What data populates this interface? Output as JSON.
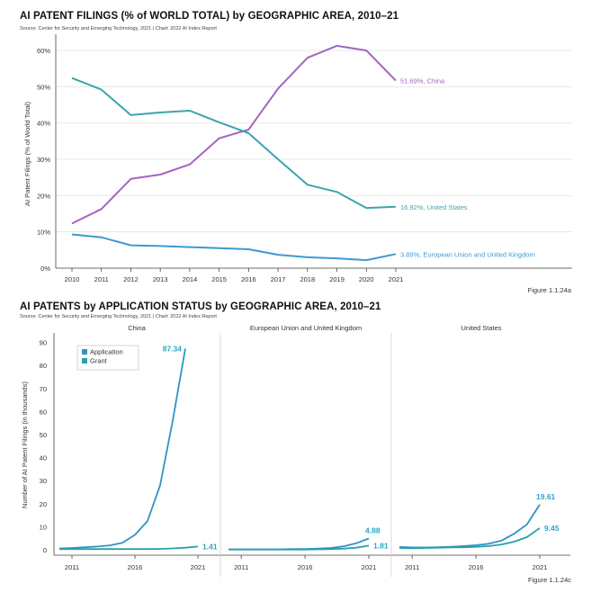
{
  "chart_data": [
    {
      "type": "line",
      "title": "AI PATENT FILINGS (% of WORLD TOTAL) by GEOGRAPHIC AREA, 2010–21",
      "source": "Source: Center for Security and Emerging Technology, 2021 | Chart: 2022 AI Index Report",
      "figure_label": "Figure 1.1.24a",
      "ylabel": "AI Patent Filings (% of World Total)",
      "xlabel": "",
      "x": [
        2010,
        2011,
        2012,
        2013,
        2014,
        2015,
        2016,
        2017,
        2018,
        2019,
        2020,
        2021
      ],
      "xtick_labels": [
        "2010",
        "2011",
        "2012",
        "2013",
        "2014",
        "2015",
        "2016",
        "2017",
        "2018",
        "2019",
        "2020",
        "2021"
      ],
      "ylim": [
        0,
        63
      ],
      "yticks": [
        0,
        10,
        20,
        30,
        40,
        50,
        60
      ],
      "ytick_labels": [
        "0%",
        "10%",
        "20%",
        "30%",
        "40%",
        "50%",
        "60%"
      ],
      "grid": "horizontal",
      "series": [
        {
          "name": "China",
          "color": "#a464c1",
          "end_label": "51.69%, China",
          "values": [
            12.3,
            16.3,
            24.6,
            25.8,
            28.6,
            35.8,
            38.2,
            49.5,
            58.0,
            61.3,
            60.0,
            51.69
          ]
        },
        {
          "name": "United States",
          "color": "#3ba5ad",
          "end_label": "16.92%, United States",
          "values": [
            52.4,
            49.2,
            42.2,
            42.9,
            43.4,
            40.2,
            37.2,
            30.0,
            23.0,
            21.0,
            16.6,
            16.92
          ]
        },
        {
          "name": "European Union and United Kingdom",
          "color": "#3d9ad1",
          "end_label": "3.89%, European Union and United Kingdom",
          "values": [
            9.3,
            8.5,
            6.3,
            6.1,
            5.8,
            5.5,
            5.2,
            3.7,
            3.0,
            2.7,
            2.2,
            3.89
          ]
        }
      ]
    },
    {
      "type": "line",
      "title": "AI PATENTS by APPLICATION STATUS by GEOGRAPHIC AREA, 2010–21",
      "source": "Source: Center for Security and Emerging Technology, 2021 | Chart: 2022 AI Index Report",
      "figure_label": "Figure 1.1.24c",
      "ylabel": "Number of AI Patent Filings (in thousands)",
      "x": [
        2010,
        2011,
        2012,
        2013,
        2014,
        2015,
        2016,
        2017,
        2018,
        2019,
        2020,
        2021
      ],
      "xtick_values": [
        2011,
        2016,
        2021
      ],
      "xtick_labels": [
        "2011",
        "2016",
        "2021"
      ],
      "ylim": [
        0,
        91
      ],
      "yticks": [
        0,
        10,
        20,
        30,
        40,
        50,
        60,
        70,
        80,
        90
      ],
      "ytick_labels": [
        "0",
        "10",
        "20",
        "30",
        "40",
        "50",
        "60",
        "70",
        "80",
        "90"
      ],
      "legend": {
        "placement": "top-left",
        "entries": [
          {
            "name": "Application",
            "color": "#2f93c7"
          },
          {
            "name": "Grant",
            "color": "#2aa0a8"
          }
        ]
      },
      "panels": [
        {
          "name": "China",
          "series": [
            {
              "name": "Application",
              "color": "#2f93c7",
              "end_label": "87.34",
              "values": [
                0.6,
                0.8,
                1.1,
                1.4,
                1.9,
                3.0,
                6.5,
                12.5,
                28.0,
                56.0,
                87.34,
                null
              ]
            },
            {
              "name": "Grant",
              "color": "#2aa0a8",
              "end_label": "1.41",
              "values": [
                0.3,
                0.3,
                0.3,
                0.3,
                0.3,
                0.3,
                0.3,
                0.3,
                0.4,
                0.6,
                0.9,
                1.41
              ]
            }
          ]
        },
        {
          "name": "European Union and United Kingdom",
          "series": [
            {
              "name": "Application",
              "color": "#2f93c7",
              "end_label": "4.88",
              "values": [
                0.2,
                0.2,
                0.2,
                0.2,
                0.2,
                0.3,
                0.3,
                0.5,
                0.8,
                1.5,
                2.8,
                4.88
              ]
            },
            {
              "name": "Grant",
              "color": "#2aa0a8",
              "end_label": "1.81",
              "values": [
                0.1,
                0.1,
                0.1,
                0.1,
                0.1,
                0.1,
                0.1,
                0.2,
                0.3,
                0.5,
                0.9,
                1.81
              ]
            }
          ]
        },
        {
          "name": "United States",
          "series": [
            {
              "name": "Application",
              "color": "#2f93c7",
              "end_label": "19.61",
              "values": [
                1.2,
                1.0,
                1.0,
                1.1,
                1.3,
                1.6,
                2.0,
                2.6,
                4.0,
                7.0,
                11.0,
                19.61
              ]
            },
            {
              "name": "Grant",
              "color": "#2aa0a8",
              "end_label": "9.45",
              "values": [
                0.8,
                0.7,
                0.8,
                0.9,
                1.0,
                1.1,
                1.3,
                1.6,
                2.3,
                3.5,
                5.5,
                9.45
              ]
            }
          ]
        }
      ]
    }
  ]
}
